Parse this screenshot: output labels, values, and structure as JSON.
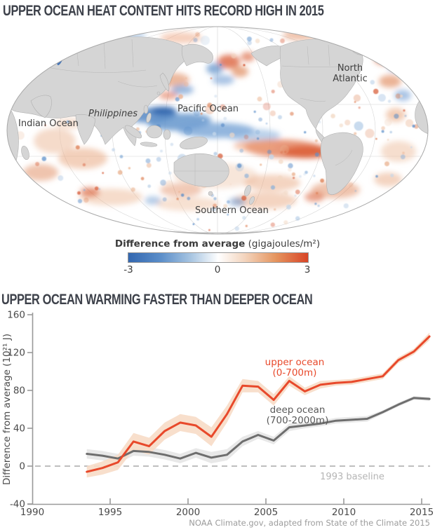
{
  "header": {
    "title1": "UPPER OCEAN HEAT CONTENT HITS RECORD HIGH IN 2015",
    "title2": "UPPER OCEAN WARMING FASTER THAN DEEPER OCEAN"
  },
  "credit": "NOAA Climate.gov, adapted from State of the Climate 2015",
  "map": {
    "labels": {
      "pacific": "Pacific Ocean",
      "philippines": "Philippines",
      "indian": "Indian Ocean",
      "north_atlantic_line1": "North",
      "north_atlantic_line2": "Atlantic",
      "southern": "Southern Ocean"
    },
    "colorbar": {
      "title_bold": "Difference from average",
      "title_units": " (gigajoules/m²)",
      "tick_min": "-3",
      "tick_mid": "0",
      "tick_max": "3",
      "color_min": "#3367b0",
      "color_mid": "#ffffff",
      "color_max": "#d84527"
    }
  },
  "chart_data": {
    "type": "line",
    "title": "UPPER OCEAN WARMING FASTER THAN DEEPER OCEAN",
    "ylabel": "Difference from average (10²¹ J)",
    "xlabel": "",
    "ylim": [
      -40,
      160
    ],
    "xlim": [
      1990,
      2016
    ],
    "yticks": [
      -40,
      0,
      40,
      80,
      120,
      160
    ],
    "xticks": [
      1990,
      1995,
      2000,
      2005,
      2010,
      2015
    ],
    "grid": false,
    "legend_position": "inline",
    "baseline": {
      "value": 0,
      "label": "1993 baseline"
    },
    "x": [
      1993.5,
      1994.5,
      1995.5,
      1996.5,
      1997.5,
      1998.5,
      1999.5,
      2000.5,
      2001.5,
      2002.5,
      2003.5,
      2004.5,
      2005.5,
      2006.5,
      2007.5,
      2008.5,
      2009.5,
      2010.5,
      2011.5,
      2012.5,
      2013.5,
      2014.5,
      2015.5
    ],
    "series": [
      {
        "name": "upper ocean",
        "range_label": "(0-700m)",
        "color": "#e8492b",
        "band_color": "#f7dcc6",
        "values": [
          -6,
          -2,
          4,
          26,
          21,
          37,
          46,
          43,
          31,
          55,
          85,
          84,
          70,
          90,
          79,
          86,
          88,
          89,
          92,
          95,
          112,
          121,
          137
        ],
        "band": [
          6,
          7,
          8,
          9,
          9,
          9,
          9,
          9,
          10,
          9,
          7,
          6,
          6,
          5,
          4,
          4,
          3,
          3,
          3,
          3,
          3,
          3,
          4
        ]
      },
      {
        "name": "deep ocean",
        "range_label": "(700-2000m)",
        "color": "#6e6e6e",
        "band_color": "#e5e5e5",
        "values": [
          13,
          11,
          8,
          16,
          15,
          12,
          8,
          14,
          9,
          12,
          26,
          33,
          27,
          41,
          43,
          45,
          48,
          49,
          50,
          57,
          65,
          72,
          71
        ],
        "band": [
          5,
          5,
          5,
          5,
          5,
          5,
          5,
          5,
          6,
          6,
          5,
          4,
          4,
          4,
          3,
          3,
          3,
          3,
          3,
          2,
          2,
          2,
          2
        ]
      }
    ]
  }
}
